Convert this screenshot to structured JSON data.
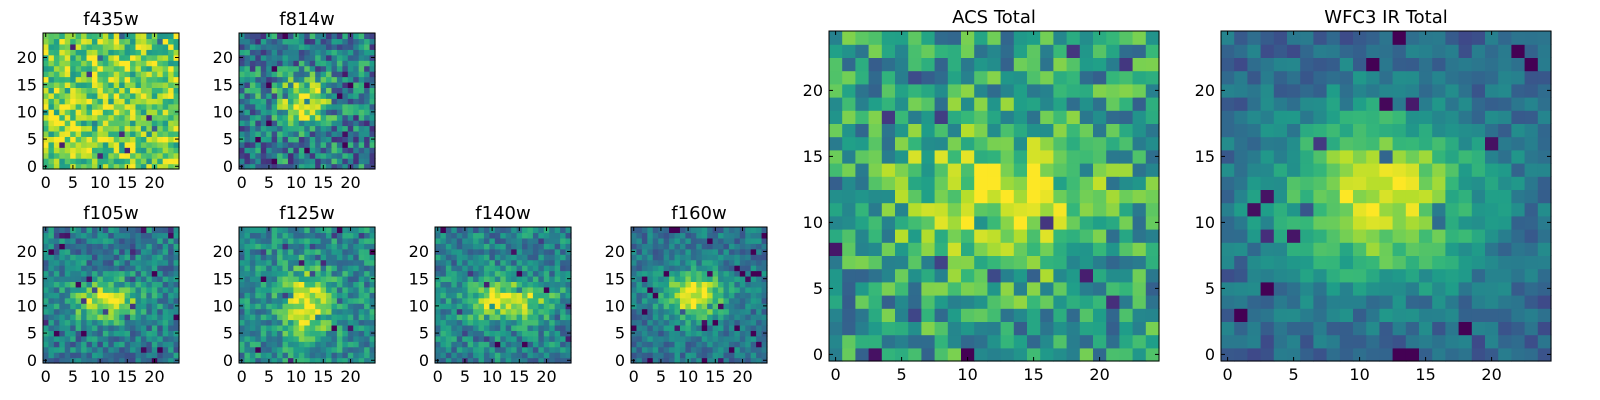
{
  "figure": {
    "background": "#ffffff"
  },
  "colormap": {
    "name": "viridis",
    "stops": [
      "#440154",
      "#482878",
      "#3e4989",
      "#31688e",
      "#26828e",
      "#1f9e89",
      "#35b779",
      "#6ece58",
      "#b5de2b",
      "#fde725"
    ]
  },
  "chart_data": [
    {
      "id": "f435w",
      "type": "heatmap",
      "title": "f435w",
      "grid_size": 25,
      "xlim": [
        0,
        24
      ],
      "ylim": [
        0,
        24
      ],
      "xticks": [
        0,
        5,
        10,
        15,
        20
      ],
      "yticks": [
        0,
        5,
        10,
        15,
        20
      ],
      "xticklabels": [
        "0",
        "5",
        "10",
        "15",
        "20"
      ],
      "yticklabels": [
        "0",
        "5",
        "10",
        "15",
        "20"
      ],
      "origin": "lower",
      "approximate": true,
      "pattern": {
        "background": 0.78,
        "noise": 0.26,
        "peak": 0.0,
        "center": [
          12,
          12
        ],
        "sigma": [
          4,
          3
        ],
        "seed": 11
      }
    },
    {
      "id": "f814w",
      "type": "heatmap",
      "title": "f814w",
      "grid_size": 25,
      "xlim": [
        0,
        24
      ],
      "ylim": [
        0,
        24
      ],
      "xticks": [
        0,
        5,
        10,
        15,
        20
      ],
      "yticks": [
        0,
        5,
        10,
        15,
        20
      ],
      "xticklabels": [
        "0",
        "5",
        "10",
        "15",
        "20"
      ],
      "yticklabels": [
        "0",
        "5",
        "10",
        "15",
        "20"
      ],
      "origin": "lower",
      "approximate": true,
      "pattern": {
        "background": 0.42,
        "noise": 0.3,
        "peak": 0.55,
        "center": [
          11,
          12
        ],
        "sigma": [
          3.5,
          3
        ],
        "seed": 23
      }
    },
    {
      "id": "f105w",
      "type": "heatmap",
      "title": "f105w",
      "grid_size": 25,
      "xlim": [
        0,
        24
      ],
      "ylim": [
        0,
        24
      ],
      "xticks": [
        0,
        5,
        10,
        15,
        20
      ],
      "yticks": [
        0,
        5,
        10,
        15,
        20
      ],
      "xticklabels": [
        "0",
        "5",
        "10",
        "15",
        "20"
      ],
      "yticklabels": [
        "0",
        "5",
        "10",
        "15",
        "20"
      ],
      "origin": "lower",
      "approximate": true,
      "pattern": {
        "background": 0.42,
        "noise": 0.2,
        "peak": 0.55,
        "center": [
          11,
          11
        ],
        "sigma": [
          4.5,
          2.5
        ],
        "seed": 37
      }
    },
    {
      "id": "f125w",
      "type": "heatmap",
      "title": "f125w",
      "grid_size": 25,
      "xlim": [
        0,
        24
      ],
      "ylim": [
        0,
        24
      ],
      "xticks": [
        0,
        5,
        10,
        15,
        20
      ],
      "yticks": [
        0,
        5,
        10,
        15,
        20
      ],
      "xticklabels": [
        "0",
        "5",
        "10",
        "15",
        "20"
      ],
      "yticklabels": [
        "0",
        "5",
        "10",
        "15",
        "20"
      ],
      "origin": "lower",
      "approximate": true,
      "pattern": {
        "background": 0.48,
        "noise": 0.2,
        "peak": 0.5,
        "center": [
          12,
          10
        ],
        "sigma": [
          3,
          4.5
        ],
        "seed": 41
      }
    },
    {
      "id": "f140w",
      "type": "heatmap",
      "title": "f140w",
      "grid_size": 25,
      "xlim": [
        0,
        24
      ],
      "ylim": [
        0,
        24
      ],
      "xticks": [
        0,
        5,
        10,
        15,
        20
      ],
      "yticks": [
        0,
        5,
        10,
        15,
        20
      ],
      "xticklabels": [
        "0",
        "5",
        "10",
        "15",
        "20"
      ],
      "yticklabels": [
        "0",
        "5",
        "10",
        "15",
        "20"
      ],
      "origin": "lower",
      "approximate": true,
      "pattern": {
        "background": 0.45,
        "noise": 0.2,
        "peak": 0.52,
        "center": [
          13,
          11
        ],
        "sigma": [
          5.5,
          2.5
        ],
        "seed": 53
      }
    },
    {
      "id": "f160w",
      "type": "heatmap",
      "title": "f160w",
      "grid_size": 25,
      "xlim": [
        0,
        24
      ],
      "ylim": [
        0,
        24
      ],
      "xticks": [
        0,
        5,
        10,
        15,
        20
      ],
      "yticks": [
        0,
        5,
        10,
        15,
        20
      ],
      "xticklabels": [
        "0",
        "5",
        "10",
        "15",
        "20"
      ],
      "yticklabels": [
        "0",
        "5",
        "10",
        "15",
        "20"
      ],
      "origin": "lower",
      "approximate": true,
      "pattern": {
        "background": 0.4,
        "noise": 0.15,
        "peak": 0.6,
        "center": [
          11,
          12
        ],
        "sigma": [
          4,
          3
        ],
        "seed": 67
      }
    },
    {
      "id": "acs-total",
      "type": "heatmap",
      "title": "ACS Total",
      "grid_size": 25,
      "xlim": [
        0,
        24
      ],
      "ylim": [
        0,
        24
      ],
      "xticks": [
        0,
        5,
        10,
        15,
        20
      ],
      "yticks": [
        0,
        5,
        10,
        15,
        20
      ],
      "xticklabels": [
        "0",
        "5",
        "10",
        "15",
        "20"
      ],
      "yticklabels": [
        "0",
        "5",
        "10",
        "15",
        "20"
      ],
      "origin": "lower",
      "approximate": true,
      "pattern": {
        "background": 0.55,
        "noise": 0.26,
        "peak": 0.4,
        "center": [
          12,
          12
        ],
        "sigma": [
          5,
          3.5
        ],
        "seed": 79
      }
    },
    {
      "id": "wfc3-ir-total",
      "type": "heatmap",
      "title": "WFC3 IR Total",
      "grid_size": 25,
      "xlim": [
        0,
        24
      ],
      "ylim": [
        0,
        24
      ],
      "xticks": [
        0,
        5,
        10,
        15,
        20
      ],
      "yticks": [
        0,
        5,
        10,
        15,
        20
      ],
      "xticklabels": [
        "0",
        "5",
        "10",
        "15",
        "20"
      ],
      "yticklabels": [
        "0",
        "5",
        "10",
        "15",
        "20"
      ],
      "origin": "lower",
      "approximate": true,
      "pattern": {
        "background": 0.33,
        "noise": 0.12,
        "peak": 0.62,
        "center": [
          11.5,
          12
        ],
        "sigma": [
          5.5,
          4.5
        ],
        "seed": 97
      }
    }
  ]
}
